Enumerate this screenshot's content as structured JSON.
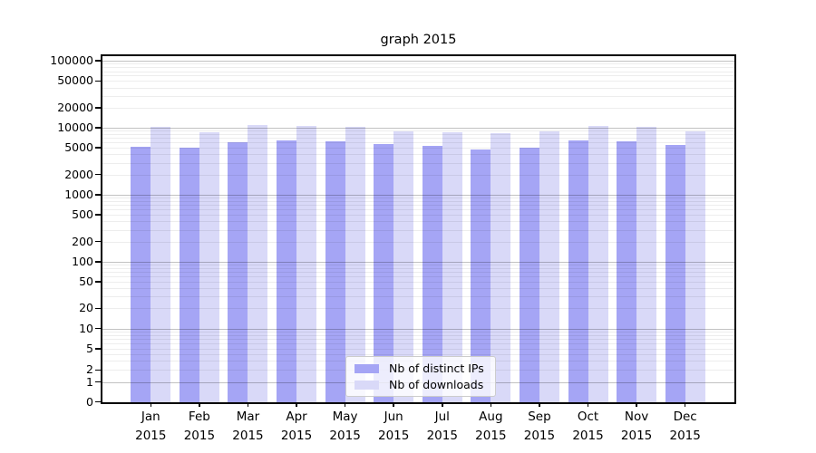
{
  "title": "graph 2015",
  "chart_data": {
    "type": "bar",
    "title": "graph 2015",
    "categories": [
      "Jan",
      "Feb",
      "Mar",
      "Apr",
      "May",
      "Jun",
      "Jul",
      "Aug",
      "Sep",
      "Oct",
      "Nov",
      "Dec"
    ],
    "category_sublabel": "2015",
    "series": [
      {
        "name": "Nb of distinct IPs",
        "color": "#a5a5f5",
        "values": [
          5200,
          5100,
          6000,
          6500,
          6300,
          5700,
          5300,
          4800,
          5000,
          6500,
          6200,
          5500
        ]
      },
      {
        "name": "Nb of downloads",
        "color": "#d9d9f8",
        "values": [
          10200,
          8600,
          11000,
          10700,
          10400,
          8900,
          8600,
          8200,
          8700,
          10800,
          10300,
          8800
        ]
      }
    ],
    "y_scale": "symlog",
    "ylim": [
      0,
      100000
    ],
    "y_tick_values": [
      100000,
      50000,
      20000,
      10000,
      5000,
      2000,
      1000,
      500,
      200,
      100,
      50,
      20,
      10,
      5,
      2,
      1,
      0
    ],
    "y_tick_labels": [
      "100000",
      "50000",
      "20000",
      "10000",
      "5000",
      "2000",
      "1000",
      "500",
      "200",
      "100",
      "50",
      "20",
      "10",
      "5",
      "2",
      "1",
      "0"
    ],
    "grid": true,
    "legend_position": "lower center"
  },
  "legend": {
    "items": [
      {
        "label": "Nb of distinct IPs",
        "swatch_color": "#a5a5f5"
      },
      {
        "label": "Nb of downloads",
        "swatch_color": "#d9d9f8"
      }
    ]
  },
  "colors": {
    "background": "#ffffff",
    "bar_distinct_ips": "#a5a5f5",
    "bar_downloads": "#d9d9f8",
    "grid_major": "rgba(0,0,0,0.24)",
    "grid_minor": "rgba(0,0,0,0.07)",
    "axis": "#000000",
    "legend_border": "#cccccc"
  }
}
